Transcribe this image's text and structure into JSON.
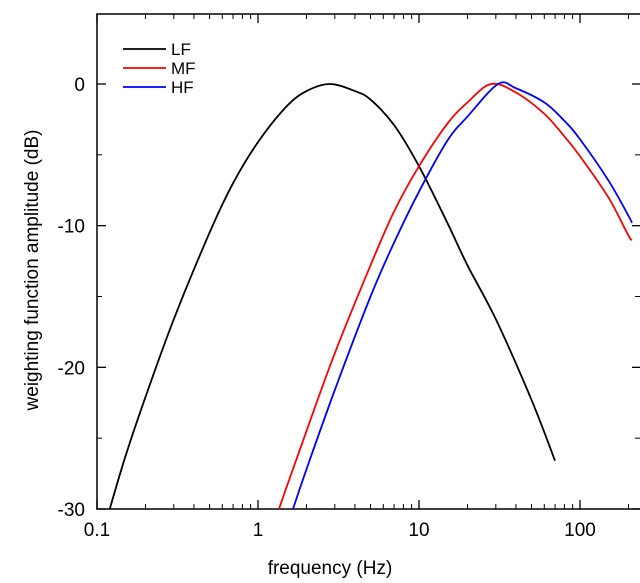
{
  "chart_data": {
    "type": "line",
    "title": "",
    "xlabel": "frequency (Hz)",
    "ylabel": "weighting function amplitude (dB)",
    "xscale": "log",
    "xlim": [
      0.1,
      210
    ],
    "ylim": [
      -30,
      4
    ],
    "grid": false,
    "legend_position": "top-left",
    "x_ticks": [
      {
        "value": 0.1,
        "label": "0.1"
      },
      {
        "value": 1,
        "label": "1"
      },
      {
        "value": 10,
        "label": "10"
      },
      {
        "value": 100,
        "label": "100"
      }
    ],
    "y_ticks": [
      {
        "value": 0,
        "label": "0"
      },
      {
        "value": -10,
        "label": "-10"
      },
      {
        "value": -20,
        "label": "-20"
      },
      {
        "value": -30,
        "label": "-30"
      }
    ],
    "series": [
      {
        "name": "LF",
        "color": "#000000",
        "x": [
          0.12,
          0.15,
          0.2,
          0.3,
          0.5,
          0.7,
          1.0,
          1.5,
          2.0,
          2.8,
          4.0,
          5.0,
          7.0,
          10.0,
          15.0,
          20.0,
          30.0,
          50.0,
          70.0
        ],
        "y": [
          -30.0,
          -26.3,
          -22.1,
          -16.6,
          -10.5,
          -7.0,
          -4.1,
          -1.6,
          -0.5,
          0.0,
          -0.5,
          -1.1,
          -2.9,
          -5.8,
          -9.8,
          -12.8,
          -16.6,
          -22.3,
          -26.6
        ]
      },
      {
        "name": "MF",
        "color": "#ff0000",
        "x": [
          1.35,
          1.5,
          2.0,
          3.0,
          5.0,
          7.0,
          10.0,
          15.0,
          20.0,
          28.0,
          40.0,
          60.0,
          80.0,
          100.0,
          150.0,
          200.0,
          210.0
        ],
        "y": [
          -30.0,
          -28.5,
          -24.5,
          -19.0,
          -12.8,
          -9.0,
          -5.8,
          -2.8,
          -1.3,
          0.0,
          -0.6,
          -2.1,
          -3.7,
          -5.1,
          -8.0,
          -10.7,
          -11.0
        ]
      },
      {
        "name": "HF",
        "color": "#0000ff",
        "x": [
          1.65,
          2.0,
          3.0,
          5.0,
          7.0,
          10.0,
          15.0,
          20.0,
          31.0,
          40.0,
          60.0,
          80.0,
          100.0,
          150.0,
          200.0,
          210.0
        ],
        "y": [
          -30.0,
          -27.2,
          -21.6,
          -15.0,
          -11.2,
          -7.6,
          -4.0,
          -2.3,
          0.0,
          -0.3,
          -1.3,
          -2.6,
          -3.9,
          -6.8,
          -9.3,
          -9.8
        ]
      }
    ]
  }
}
